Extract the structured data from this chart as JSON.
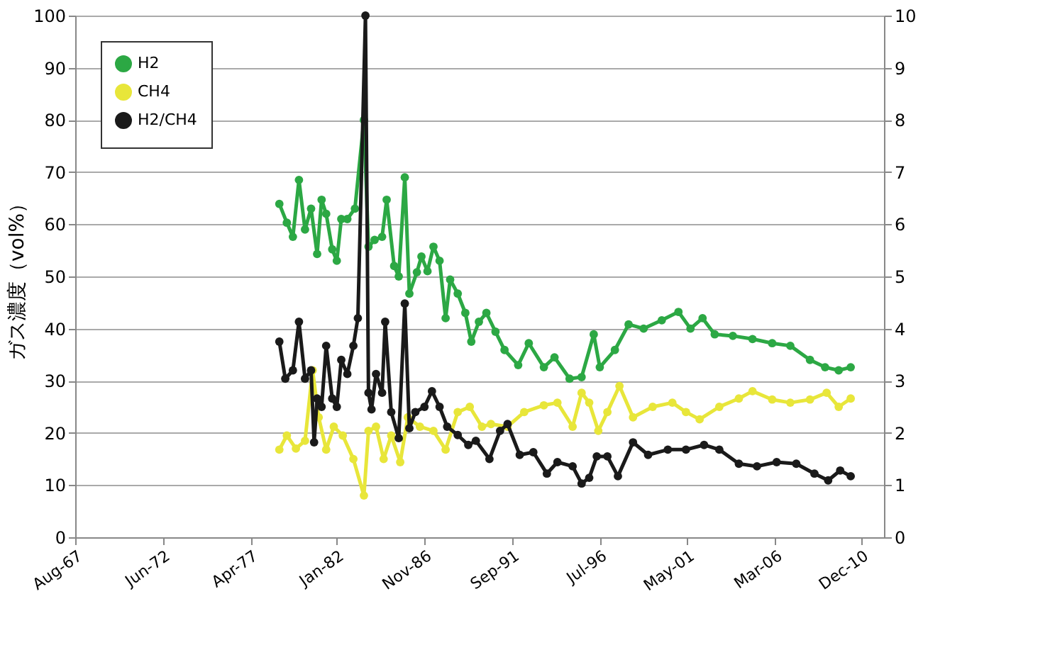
{
  "chart_data": {
    "type": "line",
    "ylabel": "ガス濃度（vol%）",
    "xlim": [
      "1967-08",
      "2012-03"
    ],
    "xticks": [
      {
        "value": "1967-08",
        "label": "Aug-67"
      },
      {
        "value": "1972-06",
        "label": "Jun-72"
      },
      {
        "value": "1977-04",
        "label": "Apr-77"
      },
      {
        "value": "1982-01",
        "label": "Jan-82"
      },
      {
        "value": "1986-11",
        "label": "Nov-86"
      },
      {
        "value": "1991-09",
        "label": "Sep-91"
      },
      {
        "value": "1996-07",
        "label": "Jul-96"
      },
      {
        "value": "2001-05",
        "label": "May-01"
      },
      {
        "value": "2006-03",
        "label": "Mar-06"
      },
      {
        "value": "2010-12",
        "label": "Dec-10"
      }
    ],
    "ylim": [
      0,
      100
    ],
    "yticks": [
      0,
      10,
      20,
      30,
      40,
      50,
      60,
      70,
      80,
      90,
      100
    ],
    "y2lim": [
      0,
      10
    ],
    "y2ticks": [
      0,
      1,
      2,
      3,
      4,
      5,
      6,
      7,
      8,
      9,
      10
    ],
    "grid": "y",
    "legend": "top left",
    "marker": "circle",
    "line_style": "solid",
    "series": [
      {
        "name": "H2",
        "color": "#2ca844",
        "x": [
          "1978-11",
          "1979-04",
          "1979-08",
          "1979-12",
          "1980-04",
          "1980-08",
          "1980-12",
          "1981-03",
          "1981-06",
          "1981-10",
          "1982-01",
          "1982-04",
          "1982-08",
          "1983-01",
          "1983-07",
          "1983-10",
          "1984-02",
          "1984-07",
          "1984-10",
          "1985-03",
          "1985-06",
          "1985-10",
          "1986-01",
          "1986-06",
          "1986-09",
          "1987-01",
          "1987-05",
          "1987-09",
          "1988-01",
          "1988-04",
          "1988-09",
          "1989-02",
          "1989-06",
          "1989-11",
          "1990-04",
          "1990-10",
          "1991-04",
          "1992-01",
          "1992-08",
          "1993-06",
          "1994-01",
          "1994-11",
          "1995-07",
          "1996-03",
          "1996-07",
          "1997-05",
          "1998-02",
          "1998-12",
          "1999-12",
          "2000-11",
          "2001-07",
          "2002-03",
          "2002-11",
          "2003-11",
          "2004-12",
          "2006-01",
          "2007-01",
          "2008-02",
          "2008-12",
          "2009-09",
          "2010-05"
        ],
        "values": [
          63.9,
          60.3,
          57.6,
          68.5,
          59,
          63,
          54.3,
          64.7,
          62,
          55.2,
          53,
          61,
          61,
          63,
          80,
          55.7,
          57,
          57.6,
          64.7,
          52,
          50,
          69,
          46.7,
          50.8,
          53.8,
          51,
          55.7,
          53,
          42,
          49.4,
          46.7,
          43,
          37.5,
          41.3,
          43,
          39.4,
          35.9,
          33,
          37.2,
          32.6,
          34.5,
          30.4,
          30.7,
          38.9,
          32.6,
          35.9,
          40.8,
          40,
          41.6,
          43.2,
          40,
          42,
          38.9,
          38.6,
          38,
          37.2,
          36.7,
          34,
          32.6,
          32,
          32.6
        ]
      },
      {
        "name": "CH4",
        "color": "#e8e63a",
        "x": [
          "1978-11",
          "1979-04",
          "1979-10",
          "1980-04",
          "1980-09",
          "1981-01",
          "1981-06",
          "1981-11",
          "1982-05",
          "1982-12",
          "1983-07",
          "1983-10",
          "1984-03",
          "1984-08",
          "1985-01",
          "1985-07",
          "1985-12",
          "1986-08",
          "1987-05",
          "1988-01",
          "1988-09",
          "1989-05",
          "1990-01",
          "1990-07",
          "1991-06",
          "1992-05",
          "1993-06",
          "1994-03",
          "1995-01",
          "1995-07",
          "1995-12",
          "1996-06",
          "1996-12",
          "1997-08",
          "1998-05",
          "1999-06",
          "2000-07",
          "2001-04",
          "2002-01",
          "2003-02",
          "2004-03",
          "2004-12",
          "2006-01",
          "2007-01",
          "2008-02",
          "2009-01",
          "2009-09",
          "2010-05"
        ],
        "values": [
          16.8,
          19.5,
          17,
          18.5,
          32,
          23,
          16.8,
          21.2,
          19.5,
          15,
          8,
          20.4,
          21.2,
          15,
          19.5,
          14.4,
          23,
          21.2,
          20.4,
          16.8,
          24,
          25,
          21.2,
          21.7,
          21.2,
          24,
          25.3,
          25.8,
          21.2,
          27.7,
          25.8,
          20.4,
          24,
          29,
          23,
          25,
          25.8,
          24,
          22.6,
          25,
          26.6,
          28,
          26.4,
          25.8,
          26.4,
          27.7,
          25,
          26.6
        ]
      },
      {
        "name": "H2/CH4",
        "color": "#1a1a1a",
        "axis": "y2",
        "x": [
          "1978-11",
          "1979-03",
          "1979-08",
          "1979-12",
          "1980-04",
          "1980-08",
          "1980-10",
          "1980-12",
          "1981-03",
          "1981-06",
          "1981-10",
          "1982-01",
          "1982-04",
          "1982-08",
          "1982-12",
          "1983-03",
          "1983-08",
          "1983-10",
          "1983-12",
          "1984-03",
          "1984-07",
          "1984-09",
          "1985-01",
          "1985-06",
          "1985-10",
          "1986-01",
          "1986-05",
          "1986-11",
          "1987-04",
          "1987-09",
          "1988-02",
          "1988-09",
          "1989-04",
          "1989-09",
          "1990-06",
          "1991-01",
          "1991-06",
          "1992-02",
          "1992-11",
          "1993-08",
          "1994-03",
          "1995-01",
          "1995-07",
          "1995-12",
          "1996-05",
          "1996-12",
          "1997-07",
          "1998-05",
          "1999-03",
          "2000-04",
          "2001-04",
          "2002-04",
          "2003-02",
          "2004-03",
          "2005-03",
          "2006-04",
          "2007-05",
          "2008-05",
          "2009-02",
          "2009-10",
          "2010-05"
        ],
        "values": [
          3.75,
          3.04,
          3.2,
          4.13,
          3.04,
          3.2,
          1.82,
          2.66,
          2.5,
          3.67,
          2.66,
          2.5,
          3.4,
          3.13,
          3.67,
          4.2,
          10,
          2.77,
          2.45,
          3.13,
          2.77,
          4.13,
          2.4,
          1.9,
          4.48,
          2.09,
          2.4,
          2.5,
          2.8,
          2.5,
          2.12,
          1.96,
          1.77,
          1.85,
          1.5,
          2.04,
          2.17,
          1.58,
          1.63,
          1.22,
          1.44,
          1.36,
          1.03,
          1.14,
          1.55,
          1.55,
          1.17,
          1.82,
          1.58,
          1.68,
          1.68,
          1.77,
          1.68,
          1.41,
          1.36,
          1.44,
          1.41,
          1.22,
          1.09,
          1.28,
          1.17
        ]
      }
    ]
  }
}
